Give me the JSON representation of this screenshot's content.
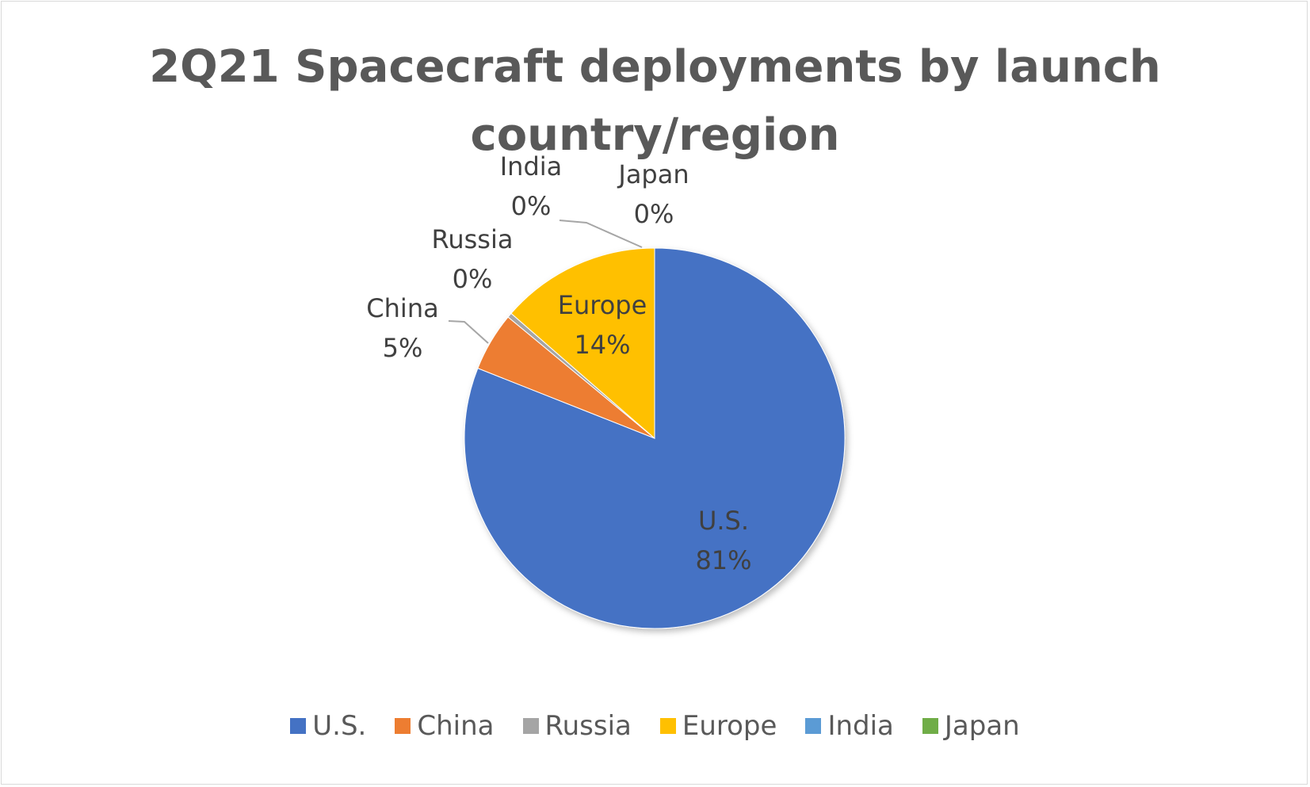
{
  "chart_data": {
    "type": "pie",
    "title": "2Q21 Spacecraft deployments by launch country/region",
    "legend_position": "bottom",
    "slices": [
      {
        "label": "U.S.",
        "value": 81.0,
        "display": "81%",
        "color": "#4472c4"
      },
      {
        "label": "China",
        "value": 5.0,
        "display": "5%",
        "color": "#ed7d31"
      },
      {
        "label": "Russia",
        "value": 0.4,
        "display": "0%",
        "color": "#a5a5a5"
      },
      {
        "label": "Europe",
        "value": 13.6,
        "display": "14%",
        "color": "#ffc000"
      },
      {
        "label": "India",
        "value": 0.0,
        "display": "0%",
        "color": "#5b9bd5"
      },
      {
        "label": "Japan",
        "value": 0.0,
        "display": "0%",
        "color": "#70ad47"
      }
    ]
  }
}
